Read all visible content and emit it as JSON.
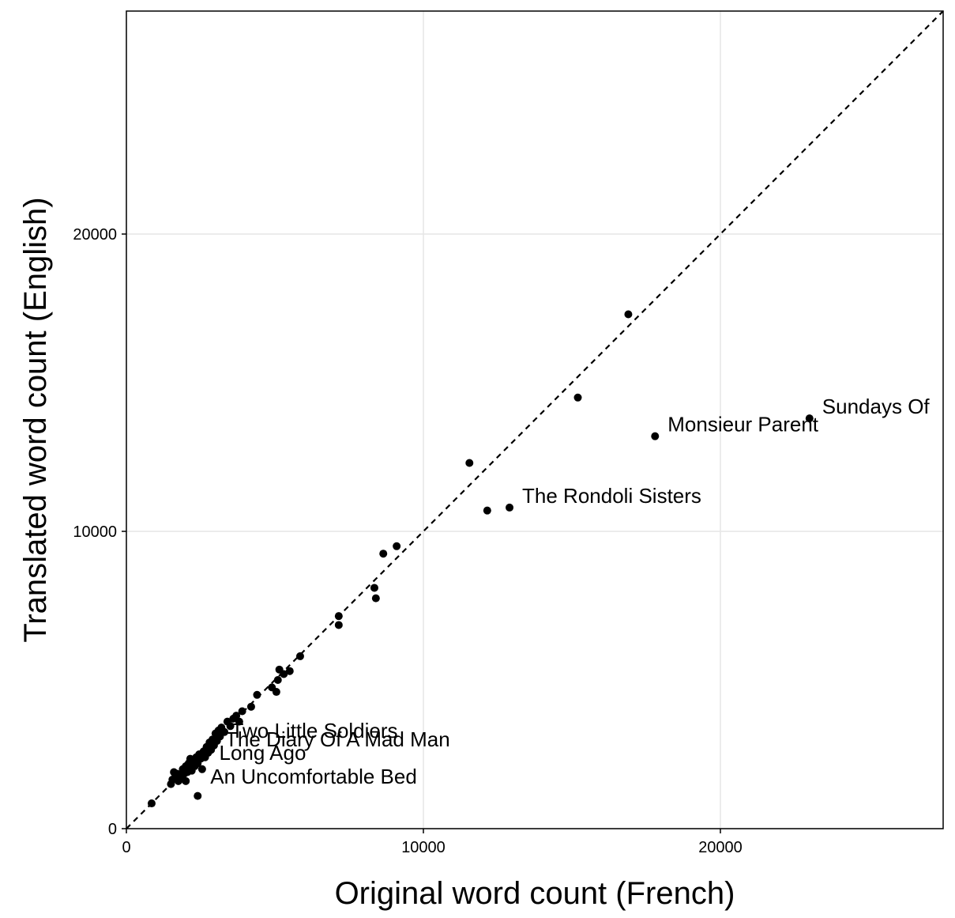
{
  "chart_data": {
    "type": "scatter",
    "title": "",
    "xlabel": "Original word count (French)",
    "ylabel": "Translated word count (English)",
    "xlim": [
      0,
      27500
    ],
    "ylim": [
      0,
      27500
    ],
    "grid": true,
    "reference_line": "y = x (dashed)",
    "x_ticks": [
      0,
      10000,
      20000
    ],
    "y_ticks": [
      0,
      10000,
      20000
    ],
    "x_tick_labels": [
      "0",
      "10000",
      "20000"
    ],
    "y_tick_labels": [
      "0",
      "10000",
      "20000"
    ],
    "point_color": "#000000",
    "points": [
      {
        "x": 850,
        "y": 850
      },
      {
        "x": 1500,
        "y": 1500
      },
      {
        "x": 1550,
        "y": 1650
      },
      {
        "x": 1600,
        "y": 1900
      },
      {
        "x": 1650,
        "y": 1750
      },
      {
        "x": 1700,
        "y": 1850
      },
      {
        "x": 1750,
        "y": 1600
      },
      {
        "x": 1800,
        "y": 1800
      },
      {
        "x": 1850,
        "y": 1700
      },
      {
        "x": 1900,
        "y": 2000
      },
      {
        "x": 1950,
        "y": 1850
      },
      {
        "x": 2000,
        "y": 2100
      },
      {
        "x": 2000,
        "y": 1600
      },
      {
        "x": 2050,
        "y": 1900
      },
      {
        "x": 2100,
        "y": 2200
      },
      {
        "x": 2150,
        "y": 2050
      },
      {
        "x": 2150,
        "y": 2350
      },
      {
        "x": 2200,
        "y": 1950
      },
      {
        "x": 2250,
        "y": 2250
      },
      {
        "x": 2300,
        "y": 2100
      },
      {
        "x": 2350,
        "y": 2400
      },
      {
        "x": 2400,
        "y": 2200
      },
      {
        "x": 2400,
        "y": 1100
      },
      {
        "x": 2450,
        "y": 2500
      },
      {
        "x": 2500,
        "y": 2350
      },
      {
        "x": 2550,
        "y": 2000
      },
      {
        "x": 2600,
        "y": 2600
      },
      {
        "x": 2650,
        "y": 2400
      },
      {
        "x": 2700,
        "y": 2750
      },
      {
        "x": 2750,
        "y": 2550
      },
      {
        "x": 2800,
        "y": 2900
      },
      {
        "x": 2850,
        "y": 2650
      },
      {
        "x": 2900,
        "y": 3000
      },
      {
        "x": 2950,
        "y": 2800
      },
      {
        "x": 3000,
        "y": 3200
      },
      {
        "x": 3050,
        "y": 2950
      },
      {
        "x": 3100,
        "y": 3300
      },
      {
        "x": 3150,
        "y": 3100
      },
      {
        "x": 3200,
        "y": 3400
      },
      {
        "x": 3300,
        "y": 3250
      },
      {
        "x": 3400,
        "y": 3600
      },
      {
        "x": 3500,
        "y": 3450
      },
      {
        "x": 3600,
        "y": 3700
      },
      {
        "x": 3700,
        "y": 3800
      },
      {
        "x": 3800,
        "y": 3600
      },
      {
        "x": 3900,
        "y": 3950
      },
      {
        "x": 4200,
        "y": 4100
      },
      {
        "x": 4400,
        "y": 4500
      },
      {
        "x": 4900,
        "y": 4750
      },
      {
        "x": 5050,
        "y": 4600
      },
      {
        "x": 5100,
        "y": 5000
      },
      {
        "x": 5150,
        "y": 5350
      },
      {
        "x": 5300,
        "y": 5200
      },
      {
        "x": 5500,
        "y": 5300
      },
      {
        "x": 5850,
        "y": 5800
      },
      {
        "x": 7150,
        "y": 7150
      },
      {
        "x": 7150,
        "y": 6850
      },
      {
        "x": 8350,
        "y": 8100
      },
      {
        "x": 8400,
        "y": 7750
      },
      {
        "x": 8650,
        "y": 9250
      },
      {
        "x": 9100,
        "y": 9500
      },
      {
        "x": 11550,
        "y": 12300
      },
      {
        "x": 12150,
        "y": 10700
      },
      {
        "x": 12900,
        "y": 10800
      },
      {
        "x": 15200,
        "y": 14500
      },
      {
        "x": 16900,
        "y": 17300
      },
      {
        "x": 17800,
        "y": 13200
      },
      {
        "x": 23000,
        "y": 13800
      }
    ],
    "annotations": [
      {
        "text": "Sundays Of",
        "x": 23000,
        "y": 13800
      },
      {
        "text": "Monsieur Parent",
        "x": 17800,
        "y": 13200
      },
      {
        "text": "The Rondoli Sisters",
        "x": 12900,
        "y": 10800
      },
      {
        "text": "Two Little Soldiers",
        "x": 3100,
        "y": 2900
      },
      {
        "text": "The Diary Of A Mad Man",
        "x": 2900,
        "y": 2600
      },
      {
        "text": "Long Ago",
        "x": 2700,
        "y": 2150
      },
      {
        "text": "An Uncomfortable Bed",
        "x": 2400,
        "y": 1350
      }
    ]
  }
}
